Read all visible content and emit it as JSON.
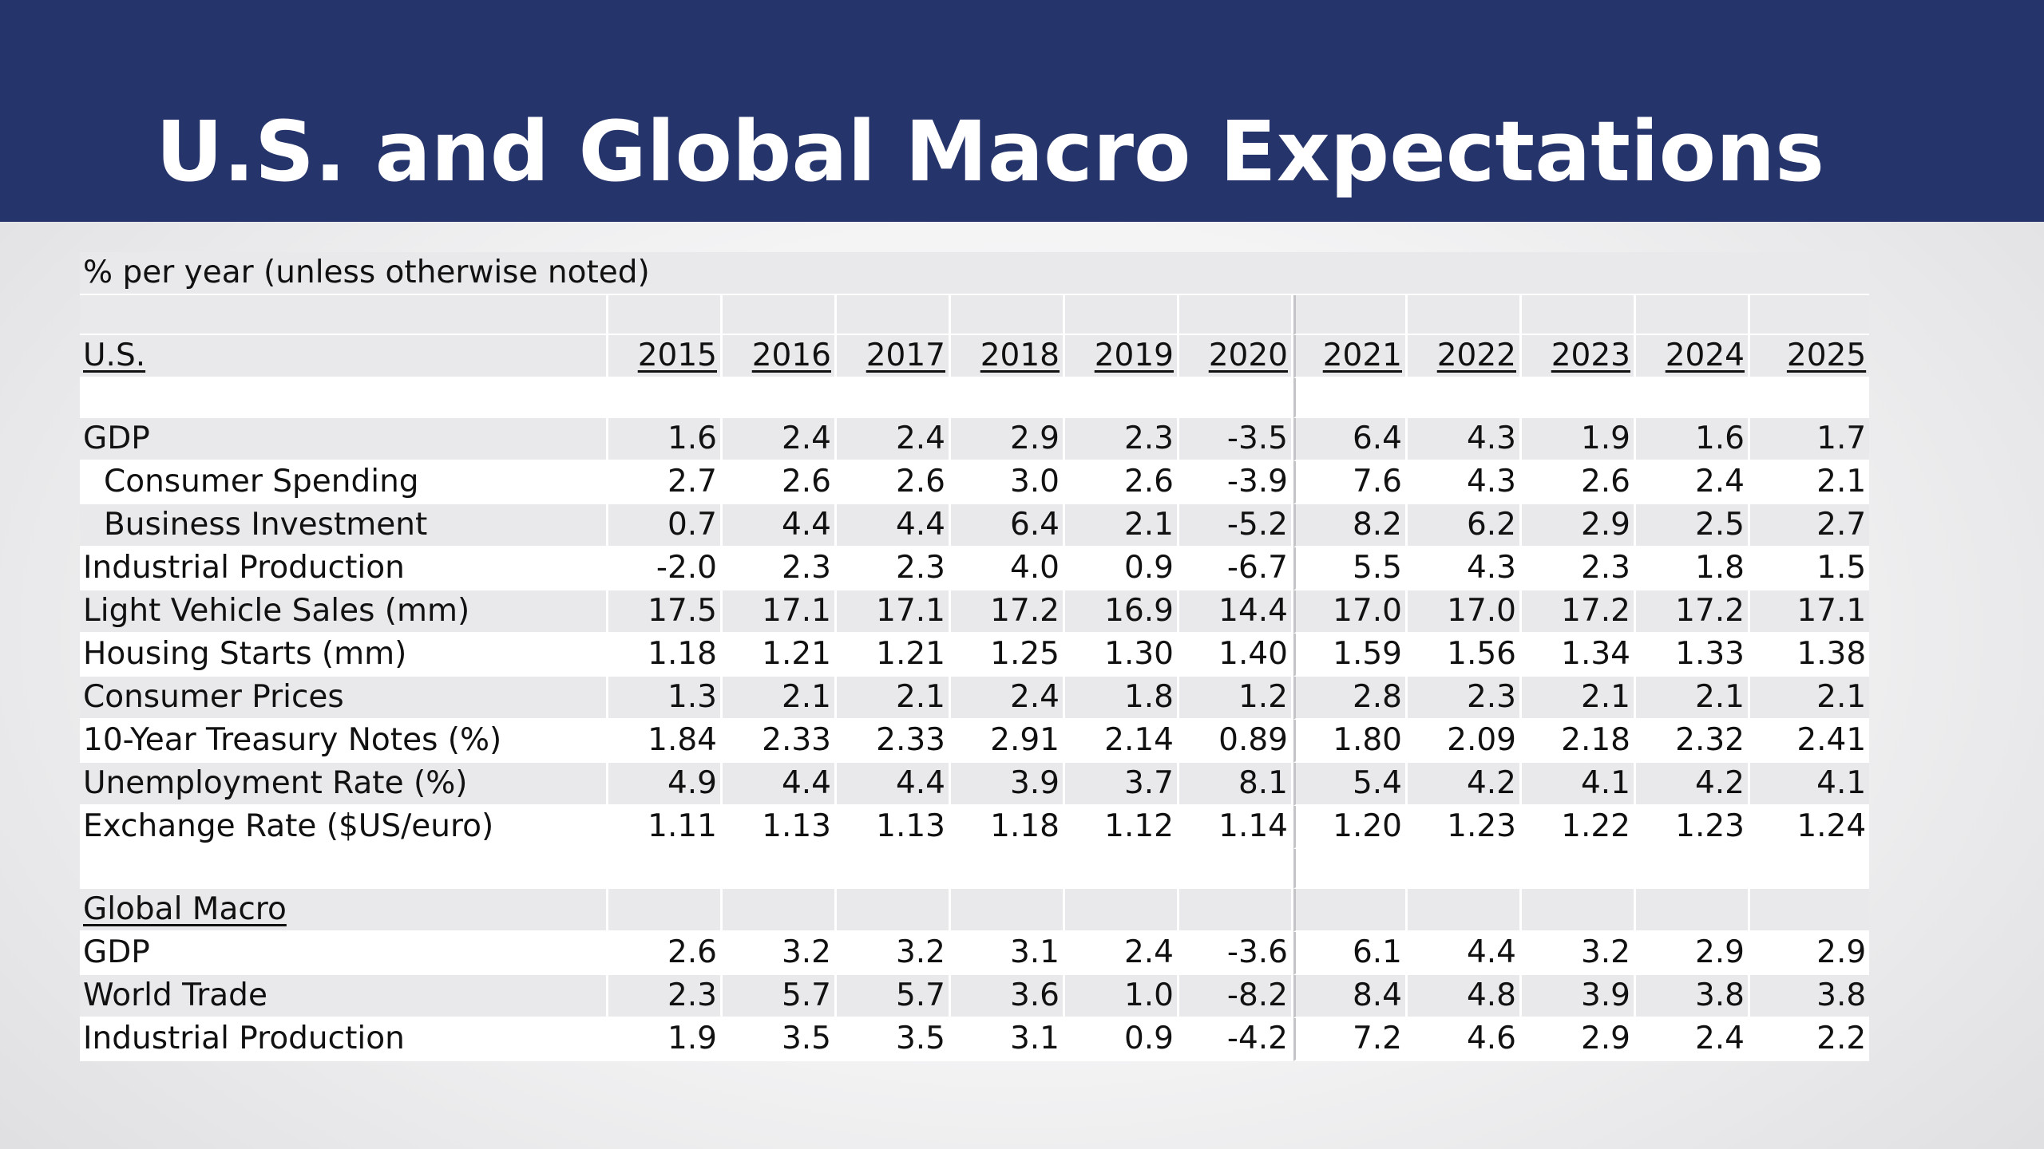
{
  "title": "U.S. and Global Macro Expectations",
  "units_note": "% per year (unless otherwise noted)",
  "us_label": "U.S.",
  "years": [
    "2015",
    "2016",
    "2017",
    "2018",
    "2019",
    "2020",
    "2021",
    "2022",
    "2023",
    "2024",
    "2025"
  ],
  "us_rows": [
    {
      "label": "GDP",
      "values": [
        "1.6",
        "2.4",
        "2.4",
        "2.9",
        "2.3",
        "-3.5",
        "6.4",
        "4.3",
        "1.9",
        "1.6",
        "1.7"
      ]
    },
    {
      "label": "Consumer Spending",
      "values": [
        "2.7",
        "2.6",
        "2.6",
        "3.0",
        "2.6",
        "-3.9",
        "7.6",
        "4.3",
        "2.6",
        "2.4",
        "2.1"
      ]
    },
    {
      "label": "Business Investment",
      "values": [
        "0.7",
        "4.4",
        "4.4",
        "6.4",
        "2.1",
        "-5.2",
        "8.2",
        "6.2",
        "2.9",
        "2.5",
        "2.7"
      ]
    },
    {
      "label": "Industrial Production",
      "values": [
        "-2.0",
        "2.3",
        "2.3",
        "4.0",
        "0.9",
        "-6.7",
        "5.5",
        "4.3",
        "2.3",
        "1.8",
        "1.5"
      ]
    },
    {
      "label": "Light Vehicle Sales (mm)",
      "values": [
        "17.5",
        "17.1",
        "17.1",
        "17.2",
        "16.9",
        "14.4",
        "17.0",
        "17.0",
        "17.2",
        "17.2",
        "17.1"
      ]
    },
    {
      "label": "Housing Starts (mm)",
      "values": [
        "1.18",
        "1.21",
        "1.21",
        "1.25",
        "1.30",
        "1.40",
        "1.59",
        "1.56",
        "1.34",
        "1.33",
        "1.38"
      ]
    },
    {
      "label": "Consumer Prices",
      "values": [
        "1.3",
        "2.1",
        "2.1",
        "2.4",
        "1.8",
        "1.2",
        "2.8",
        "2.3",
        "2.1",
        "2.1",
        "2.1"
      ]
    },
    {
      "label": "10-Year Treasury Notes (%)",
      "values": [
        "1.84",
        "2.33",
        "2.33",
        "2.91",
        "2.14",
        "0.89",
        "1.80",
        "2.09",
        "2.18",
        "2.32",
        "2.41"
      ]
    },
    {
      "label": "Unemployment Rate (%)",
      "values": [
        "4.9",
        "4.4",
        "4.4",
        "3.9",
        "3.7",
        "8.1",
        "5.4",
        "4.2",
        "4.1",
        "4.2",
        "4.1"
      ]
    },
    {
      "label": "Exchange Rate ($US/euro)",
      "values": [
        "1.11",
        "1.13",
        "1.13",
        "1.18",
        "1.12",
        "1.14",
        "1.20",
        "1.23",
        "1.22",
        "1.23",
        "1.24"
      ]
    }
  ],
  "global_label": "Global Macro",
  "global_rows": [
    {
      "label": "GDP",
      "values": [
        "2.6",
        "3.2",
        "3.2",
        "3.1",
        "2.4",
        "-3.6",
        "6.1",
        "4.4",
        "3.2",
        "2.9",
        "2.9"
      ]
    },
    {
      "label": "World Trade",
      "values": [
        "2.3",
        "5.7",
        "5.7",
        "3.6",
        "1.0",
        "-8.2",
        "8.4",
        "4.8",
        "3.9",
        "3.8",
        "3.8"
      ]
    },
    {
      "label": "Industrial Production",
      "values": [
        "1.9",
        "3.5",
        "3.5",
        "3.1",
        "0.9",
        "-4.2",
        "7.2",
        "4.6",
        "2.9",
        "2.4",
        "2.2"
      ]
    }
  ]
}
